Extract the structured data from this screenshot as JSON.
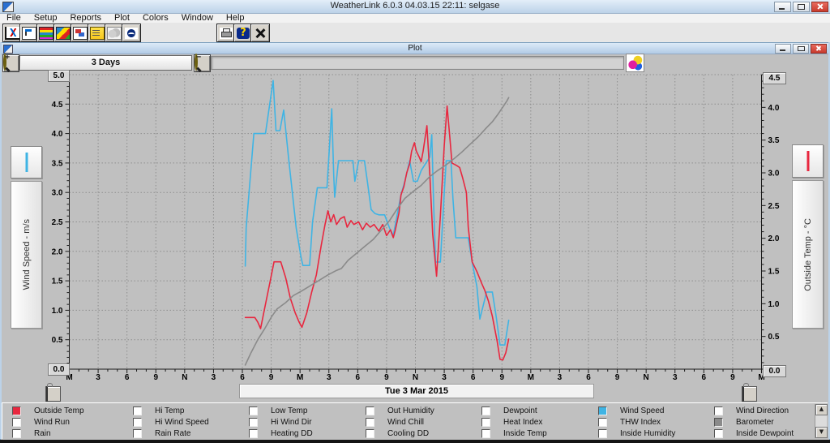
{
  "window": {
    "title": "WeatherLink 6.0.3  04.03.15  22:11: selgase"
  },
  "menu": [
    "File",
    "Setup",
    "Reports",
    "Plot",
    "Colors",
    "Window",
    "Help"
  ],
  "toolbar": {
    "left_buttons": [
      "plot-template-icon",
      "download-icon",
      "strip-charts-icon",
      "color-plot-icon",
      "windows-icon",
      "notepad-icon",
      "noaa-cloud-icon",
      "noaa-logo-icon"
    ],
    "right_buttons": [
      "printer-icon",
      "help-icon",
      "close-tool-icon"
    ]
  },
  "plot_window": {
    "title": "Plot",
    "range_label": "3 Days",
    "date_label": "Tue 3 Mar 2015",
    "left_axis": {
      "label": "Wind Speed - m/s",
      "max_box": "5.0",
      "min_box": "0.0",
      "ticks": [
        "4.5",
        "4.0",
        "3.5",
        "3.0",
        "2.5",
        "2.0",
        "1.5",
        "1.0",
        "0.5"
      ]
    },
    "right_axis": {
      "label": "Outside Temp - °C",
      "max_box": "4.5",
      "min_box": "0.0",
      "ticks": [
        "4.0",
        "3.5",
        "3.0",
        "2.5",
        "2.0",
        "1.5",
        "1.0",
        "0.5"
      ]
    },
    "x_labels": [
      "M",
      "3",
      "6",
      "9",
      "N",
      "3",
      "6",
      "9",
      "M",
      "3",
      "6",
      "9",
      "N",
      "3",
      "6",
      "9",
      "M",
      "3",
      "6",
      "9",
      "N",
      "3",
      "6",
      "9",
      "M"
    ]
  },
  "colors": {
    "wind_speed": "#3fb4e4",
    "outside_temp": "#e8273f",
    "barometer": "#8a8a8a",
    "grid": "#8e8e8e",
    "plot_bg": "#c0c0c0"
  },
  "legend": {
    "columns": [
      [
        {
          "label": "Outside Temp",
          "checked": true,
          "color": "#e8273f"
        },
        {
          "label": "Wind Run",
          "checked": false
        },
        {
          "label": "Rain",
          "checked": false
        }
      ],
      [
        {
          "label": "Hi Temp",
          "checked": false
        },
        {
          "label": "Hi Wind Speed",
          "checked": false
        },
        {
          "label": "Rain Rate",
          "checked": false
        }
      ],
      [
        {
          "label": "Low Temp",
          "checked": false
        },
        {
          "label": "Hi Wind Dir",
          "checked": false
        },
        {
          "label": "Heating DD",
          "checked": false
        }
      ],
      [
        {
          "label": "Out Humidity",
          "checked": false
        },
        {
          "label": "Wind Chill",
          "checked": false
        },
        {
          "label": "Cooling DD",
          "checked": false
        }
      ],
      [
        {
          "label": "Dewpoint",
          "checked": false
        },
        {
          "label": "Heat Index",
          "checked": false
        },
        {
          "label": "Inside Temp",
          "checked": false
        }
      ],
      [
        {
          "label": "Wind Speed",
          "checked": true,
          "color": "#3fb4e4"
        },
        {
          "label": "THW Index",
          "checked": false
        },
        {
          "label": "Inside Humidity",
          "checked": false
        }
      ],
      [
        {
          "label": "Wind Direction",
          "checked": false
        },
        {
          "label": "Barometer",
          "checked": true,
          "color": "#8a8a8a"
        },
        {
          "label": "Inside Dewpoint",
          "checked": false
        }
      ]
    ]
  },
  "chart_data": {
    "type": "line",
    "title": "Plot",
    "x_unit": "hours from start of 3-day window (M=midnight, N=noon); middle day = Tue 3 Mar 2015",
    "x_range": [
      0,
      72
    ],
    "grid": true,
    "axes": {
      "left": {
        "label": "Wind Speed - m/s",
        "range": [
          0,
          5.0
        ]
      },
      "right": {
        "label": "Outside Temp - °C",
        "range": [
          0,
          4.5
        ]
      }
    },
    "series": [
      {
        "name": "Wind Speed",
        "axis": "left",
        "color": "#3fb4e4",
        "points": [
          [
            18.3,
            1.75
          ],
          [
            18.4,
            2.4
          ],
          [
            19.2,
            4.0
          ],
          [
            20.4,
            4.0
          ],
          [
            21.2,
            4.9
          ],
          [
            21.5,
            4.05
          ],
          [
            21.9,
            4.05
          ],
          [
            22.3,
            4.4
          ],
          [
            22.8,
            3.6
          ],
          [
            23.6,
            2.4
          ],
          [
            24.1,
            1.9
          ],
          [
            24.3,
            1.76
          ],
          [
            25.0,
            1.76
          ],
          [
            25.3,
            2.5
          ],
          [
            25.8,
            3.08
          ],
          [
            26.8,
            3.08
          ],
          [
            27.3,
            4.42
          ],
          [
            27.5,
            3.3
          ],
          [
            27.6,
            2.92
          ],
          [
            28.0,
            3.54
          ],
          [
            29.5,
            3.54
          ],
          [
            29.7,
            3.19
          ],
          [
            30.1,
            3.54
          ],
          [
            30.7,
            3.54
          ],
          [
            31.0,
            3.19
          ],
          [
            31.4,
            2.71
          ],
          [
            31.8,
            2.64
          ],
          [
            32.2,
            2.62
          ],
          [
            32.8,
            2.62
          ],
          [
            33.3,
            2.4
          ],
          [
            33.7,
            2.27
          ],
          [
            34.1,
            2.62
          ],
          [
            34.5,
            2.96
          ],
          [
            34.9,
            3.19
          ],
          [
            35.4,
            3.54
          ],
          [
            35.8,
            3.19
          ],
          [
            36.2,
            3.19
          ],
          [
            36.6,
            3.37
          ],
          [
            37.1,
            3.5
          ],
          [
            37.5,
            3.6
          ],
          [
            37.7,
            3.98
          ],
          [
            37.9,
            2.8
          ],
          [
            38.1,
            1.82
          ],
          [
            38.6,
            1.82
          ],
          [
            39.0,
            3.0
          ],
          [
            39.2,
            3.54
          ],
          [
            39.7,
            3.54
          ],
          [
            39.9,
            2.9
          ],
          [
            40.2,
            2.23
          ],
          [
            41.5,
            2.23
          ],
          [
            41.9,
            1.82
          ],
          [
            42.4,
            1.4
          ],
          [
            42.7,
            0.85
          ],
          [
            43.4,
            1.31
          ],
          [
            44.0,
            1.31
          ],
          [
            44.4,
            0.9
          ],
          [
            44.8,
            0.41
          ],
          [
            45.3,
            0.41
          ],
          [
            45.7,
            0.83
          ]
        ]
      },
      {
        "name": "Outside Temp",
        "axis": "right",
        "color": "#e8273f",
        "points": [
          [
            18.3,
            0.79
          ],
          [
            19.3,
            0.79
          ],
          [
            19.6,
            0.72
          ],
          [
            19.9,
            0.62
          ],
          [
            20.4,
            0.99
          ],
          [
            20.9,
            1.35
          ],
          [
            21.3,
            1.64
          ],
          [
            22.0,
            1.64
          ],
          [
            22.5,
            1.4
          ],
          [
            23.0,
            1.08
          ],
          [
            23.5,
            0.86
          ],
          [
            23.9,
            0.72
          ],
          [
            24.2,
            0.64
          ],
          [
            24.7,
            0.86
          ],
          [
            25.2,
            1.17
          ],
          [
            25.7,
            1.44
          ],
          [
            26.2,
            1.89
          ],
          [
            26.6,
            2.21
          ],
          [
            26.9,
            2.42
          ],
          [
            27.2,
            2.25
          ],
          [
            27.5,
            2.36
          ],
          [
            27.8,
            2.21
          ],
          [
            28.2,
            2.3
          ],
          [
            28.6,
            2.33
          ],
          [
            28.9,
            2.17
          ],
          [
            29.3,
            2.27
          ],
          [
            29.6,
            2.21
          ],
          [
            30.1,
            2.25
          ],
          [
            30.5,
            2.13
          ],
          [
            30.9,
            2.23
          ],
          [
            31.3,
            2.17
          ],
          [
            31.7,
            2.21
          ],
          [
            32.2,
            2.11
          ],
          [
            32.6,
            2.21
          ],
          [
            33.0,
            2.04
          ],
          [
            33.4,
            2.13
          ],
          [
            33.7,
            2.01
          ],
          [
            33.9,
            2.12
          ],
          [
            34.3,
            2.39
          ],
          [
            34.5,
            2.66
          ],
          [
            34.8,
            2.79
          ],
          [
            35.1,
            3.0
          ],
          [
            35.4,
            3.14
          ],
          [
            35.6,
            3.33
          ],
          [
            35.9,
            3.46
          ],
          [
            36.1,
            3.33
          ],
          [
            36.4,
            3.24
          ],
          [
            36.6,
            3.17
          ],
          [
            36.8,
            3.33
          ],
          [
            37.2,
            3.72
          ],
          [
            37.5,
            2.97
          ],
          [
            37.8,
            2.07
          ],
          [
            38.2,
            1.42
          ],
          [
            38.6,
            2.34
          ],
          [
            39.0,
            3.42
          ],
          [
            39.3,
            4.02
          ],
          [
            39.6,
            3.51
          ],
          [
            39.8,
            3.15
          ],
          [
            40.3,
            3.11
          ],
          [
            40.6,
            3.08
          ],
          [
            40.9,
            2.93
          ],
          [
            41.3,
            2.7
          ],
          [
            41.5,
            2.17
          ],
          [
            41.9,
            1.64
          ],
          [
            42.4,
            1.49
          ],
          [
            42.9,
            1.31
          ],
          [
            43.2,
            1.21
          ],
          [
            43.6,
            1.04
          ],
          [
            44.0,
            0.81
          ],
          [
            44.5,
            0.43
          ],
          [
            44.8,
            0.15
          ],
          [
            45.1,
            0.14
          ],
          [
            45.4,
            0.25
          ],
          [
            45.7,
            0.46
          ]
        ]
      },
      {
        "name": "Barometer",
        "axis": "left",
        "note": "plotted on its own hidden scale; values are display positions in left-axis units",
        "color": "#8a8a8a",
        "points": [
          [
            18.3,
            0.07
          ],
          [
            18.9,
            0.28
          ],
          [
            19.6,
            0.5
          ],
          [
            20.3,
            0.68
          ],
          [
            21.0,
            0.88
          ],
          [
            21.6,
            1.02
          ],
          [
            22.5,
            1.13
          ],
          [
            23.3,
            1.25
          ],
          [
            24.2,
            1.33
          ],
          [
            25.2,
            1.43
          ],
          [
            26.0,
            1.51
          ],
          [
            26.9,
            1.6
          ],
          [
            27.7,
            1.67
          ],
          [
            28.3,
            1.71
          ],
          [
            29.0,
            1.85
          ],
          [
            29.9,
            1.97
          ],
          [
            30.7,
            2.08
          ],
          [
            31.6,
            2.2
          ],
          [
            32.4,
            2.35
          ],
          [
            33.3,
            2.52
          ],
          [
            34.1,
            2.72
          ],
          [
            34.9,
            2.9
          ],
          [
            35.8,
            3.02
          ],
          [
            36.6,
            3.12
          ],
          [
            37.5,
            3.27
          ],
          [
            38.3,
            3.37
          ],
          [
            39.2,
            3.47
          ],
          [
            40.0,
            3.57
          ],
          [
            40.8,
            3.68
          ],
          [
            41.7,
            3.82
          ],
          [
            42.5,
            3.94
          ],
          [
            43.4,
            4.1
          ],
          [
            44.0,
            4.2
          ],
          [
            44.6,
            4.33
          ],
          [
            45.1,
            4.45
          ],
          [
            45.5,
            4.55
          ],
          [
            45.7,
            4.61
          ]
        ]
      }
    ],
    "legend_position": "bottom checkbox panel"
  }
}
